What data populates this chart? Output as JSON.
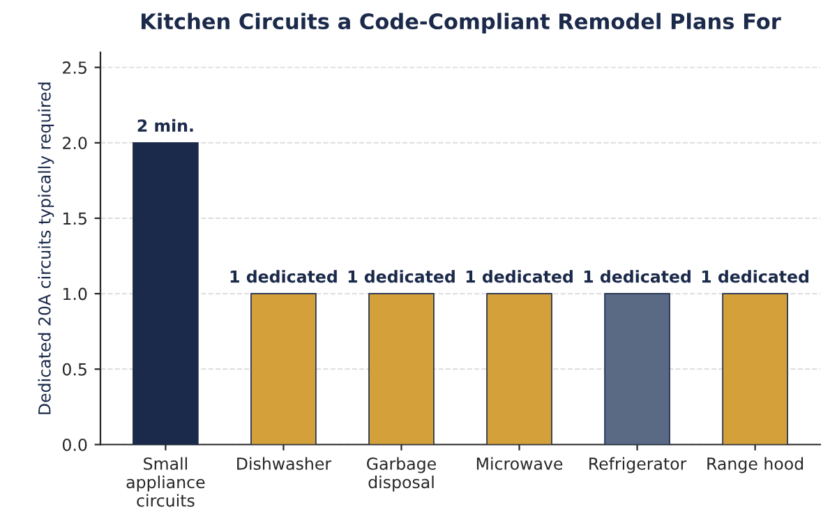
{
  "chart_data": {
    "type": "bar",
    "title": "Kitchen Circuits a Code-Compliant Remodel Plans For",
    "ylabel": "Dedicated 20A circuits typically required",
    "categories": [
      "Small\nappliance\ncircuits",
      "Dishwasher",
      "Garbage\ndisposal",
      "Microwave",
      "Refrigerator",
      "Range hood"
    ],
    "values": [
      2,
      1,
      1,
      1,
      1,
      1
    ],
    "colors": [
      "#1b2a4a",
      "#d4a03a",
      "#d4a03a",
      "#d4a03a",
      "#5a6a85",
      "#d4a03a"
    ],
    "value_labels": [
      "2 min.",
      "1 dedicated",
      "1 dedicated",
      "1 dedicated",
      "1 dedicated",
      "1 dedicated"
    ],
    "ylim": [
      0,
      2.6
    ],
    "yticks": [
      {
        "value": 0,
        "label": "0.0"
      },
      {
        "value": 0.5,
        "label": "0.5"
      },
      {
        "value": 1,
        "label": "1.0"
      },
      {
        "value": 1.5,
        "label": "1.5"
      },
      {
        "value": 2,
        "label": "2.0"
      },
      {
        "value": 2.5,
        "label": "2.5"
      }
    ],
    "grid": "y",
    "legend": false
  }
}
